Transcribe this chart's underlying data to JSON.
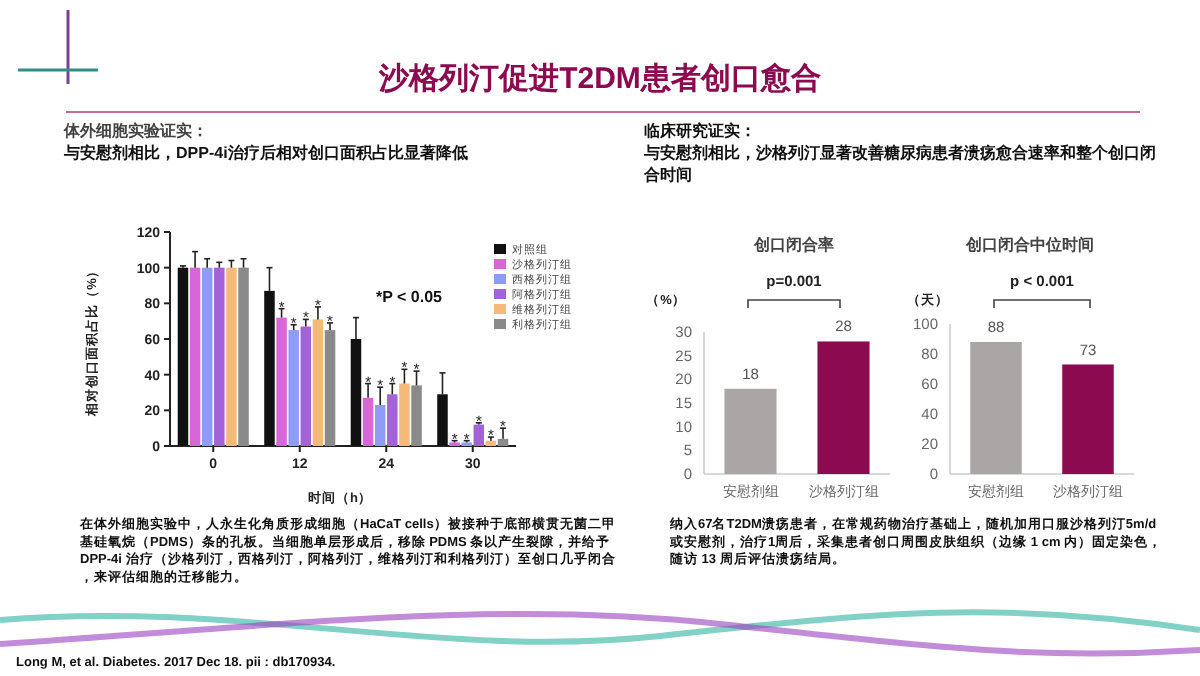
{
  "chart_data": [
    {
      "type": "other",
      "title": "沙格列汀促进T2DM患者创口愈合",
      "annotations": [
        "Long M, et al. Diabetes. 2017 Dec 18. pii : db170934."
      ]
    },
    {
      "type": "bar",
      "title": "体外细胞实验证实：",
      "subtitle": "与安慰剂相比，DPP-4i治疗后相对创口面积占比显著降低",
      "xlabel": "时间（h）",
      "ylabel": "相对创口面积占比（%）",
      "categories": [
        "0",
        "12",
        "24",
        "30"
      ],
      "ylim": [
        0,
        120
      ],
      "yticks": [
        0,
        20,
        40,
        60,
        80,
        100,
        120
      ],
      "legend": "top right",
      "annotations": [
        "*P < 0.05",
        "在体外细胞实验中，人永生化角质形成细胞（HaCaT cells）被接种于底部横贯无菌二甲基硅氧烷（PDMS）条的孔板。当细胞单层形成后，移除 PDMS 条以产生裂隙，并给予DPP-4i 治疗（沙格列汀，西格列汀，阿格列汀，维格列汀和利格列汀）至创口几乎闭合，来评估细胞的迁移能力。"
      ],
      "series": [
        {
          "name": "对照组",
          "color": "#111111",
          "values": [
            100,
            87,
            60,
            29
          ],
          "errors": [
            1,
            13,
            12,
            12
          ]
        },
        {
          "name": "沙格列汀组",
          "color": "#d966d6",
          "values": [
            100,
            72,
            27,
            2
          ],
          "errors": [
            9,
            5,
            8,
            1
          ],
          "value_labels": [
            null,
            "*",
            "*",
            "*"
          ]
        },
        {
          "name": "西格列汀组",
          "color": "#8f9cf5",
          "values": [
            100,
            65,
            23,
            2
          ],
          "errors": [
            5,
            3,
            10,
            1
          ],
          "value_labels": [
            null,
            "*",
            "*",
            "*"
          ]
        },
        {
          "name": "阿格列汀组",
          "color": "#a462d8",
          "values": [
            100,
            67,
            29,
            12
          ],
          "errors": [
            3,
            4,
            6,
            1
          ],
          "value_labels": [
            null,
            "*",
            "*",
            "*"
          ]
        },
        {
          "name": "维格列汀组",
          "color": "#f5b97a",
          "values": [
            100,
            71,
            35,
            3
          ],
          "errors": [
            4,
            7,
            8,
            2
          ],
          "value_labels": [
            null,
            "*",
            "*",
            "*"
          ]
        },
        {
          "name": "利格列汀组",
          "color": "#8a8a8a",
          "values": [
            100,
            65,
            34,
            4
          ],
          "errors": [
            5,
            4,
            8,
            6
          ],
          "value_labels": [
            null,
            "*",
            "*",
            "*"
          ]
        }
      ]
    },
    {
      "type": "other",
      "title": "临床研究证实：",
      "subtitle": "与安慰剂相比，沙格列汀显著改善糖尿病患者溃疡愈合速率和整个创口闭合时间",
      "annotations": [
        "纳入67名T2DM溃疡患者，在常规药物治疗基础上，随机加用口服沙格列汀5m/d或安慰剂，治疗1周后，采集患者创口周围皮肤组织（边缘 1 cm 内）固定染色，随访 13 周后评估溃疡结局。"
      ]
    },
    {
      "type": "bar",
      "title": "创口闭合率",
      "ylabel": "（%）",
      "categories": [
        "安慰剂组",
        "沙格列汀组"
      ],
      "values": [
        18,
        28
      ],
      "colors": [
        "#aaa6a6",
        "#8b0a50"
      ],
      "ylim": [
        0,
        30
      ],
      "yticks": [
        0,
        5,
        10,
        15,
        20,
        25,
        30
      ],
      "data_labels": true,
      "annotations": [
        "p=0.001"
      ]
    },
    {
      "type": "bar",
      "title": "创口闭合中位时间",
      "ylabel": "（天）",
      "categories": [
        "安慰剂组",
        "沙格列汀组"
      ],
      "values": [
        88,
        73
      ],
      "colors": [
        "#aaa6a6",
        "#8b0a50"
      ],
      "ylim": [
        0,
        100
      ],
      "yticks": [
        0,
        20,
        40,
        60,
        80,
        100
      ],
      "data_labels": true,
      "annotations": [
        "p < 0.001"
      ]
    }
  ]
}
